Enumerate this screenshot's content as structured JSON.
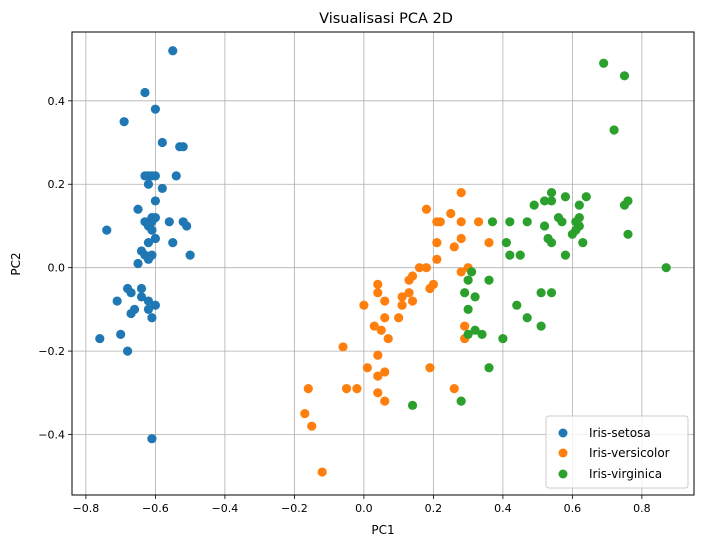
{
  "chart_data": {
    "type": "scatter",
    "title": "Visualisasi PCA 2D",
    "xlabel": "PC1",
    "ylabel": "PC2",
    "xlim": [
      -0.84,
      0.95
    ],
    "ylim": [
      -0.545,
      0.565
    ],
    "xticks": [
      -0.8,
      -0.6,
      -0.4,
      -0.2,
      0.0,
      0.2,
      0.4,
      0.6,
      0.8
    ],
    "yticks": [
      -0.4,
      -0.2,
      0.0,
      0.2,
      0.4
    ],
    "xtick_labels": [
      "−0.8",
      "−0.6",
      "−0.4",
      "−0.2",
      "0.0",
      "0.2",
      "0.4",
      "0.6",
      "0.8"
    ],
    "ytick_labels": [
      "−0.4",
      "−0.2",
      "0.0",
      "0.2",
      "0.4"
    ],
    "grid": true,
    "legend_position": "lower-right",
    "series": [
      {
        "name": "Iris-setosa",
        "color": "#1f77b4",
        "points": [
          [
            -0.55,
            0.52
          ],
          [
            -0.63,
            0.42
          ],
          [
            -0.6,
            0.38
          ],
          [
            -0.69,
            0.35
          ],
          [
            -0.58,
            0.3
          ],
          [
            -0.53,
            0.29
          ],
          [
            -0.52,
            0.29
          ],
          [
            -0.63,
            0.22
          ],
          [
            -0.62,
            0.22
          ],
          [
            -0.61,
            0.22
          ],
          [
            -0.6,
            0.22
          ],
          [
            -0.54,
            0.22
          ],
          [
            -0.62,
            0.2
          ],
          [
            -0.58,
            0.19
          ],
          [
            -0.6,
            0.16
          ],
          [
            -0.65,
            0.14
          ],
          [
            -0.61,
            0.12
          ],
          [
            -0.6,
            0.12
          ],
          [
            -0.63,
            0.11
          ],
          [
            -0.61,
            0.11
          ],
          [
            -0.56,
            0.11
          ],
          [
            -0.52,
            0.11
          ],
          [
            -0.51,
            0.1
          ],
          [
            -0.62,
            0.1
          ],
          [
            -0.74,
            0.09
          ],
          [
            -0.61,
            0.09
          ],
          [
            -0.62,
            0.06
          ],
          [
            -0.6,
            0.07
          ],
          [
            -0.55,
            0.06
          ],
          [
            -0.64,
            0.04
          ],
          [
            -0.61,
            0.03
          ],
          [
            -0.5,
            0.03
          ],
          [
            -0.63,
            0.03
          ],
          [
            -0.65,
            0.01
          ],
          [
            -0.62,
            0.02
          ],
          [
            -0.68,
            -0.05
          ],
          [
            -0.64,
            -0.05
          ],
          [
            -0.67,
            -0.06
          ],
          [
            -0.64,
            -0.07
          ],
          [
            -0.71,
            -0.08
          ],
          [
            -0.62,
            -0.08
          ],
          [
            -0.6,
            -0.09
          ],
          [
            -0.66,
            -0.1
          ],
          [
            -0.62,
            -0.1
          ],
          [
            -0.67,
            -0.11
          ],
          [
            -0.61,
            -0.12
          ],
          [
            -0.7,
            -0.16
          ],
          [
            -0.76,
            -0.17
          ],
          [
            -0.68,
            -0.2
          ],
          [
            -0.61,
            -0.41
          ]
        ]
      },
      {
        "name": "Iris-versicolor",
        "color": "#ff7f0e",
        "points": [
          [
            0.28,
            0.18
          ],
          [
            0.18,
            0.14
          ],
          [
            0.25,
            0.13
          ],
          [
            0.21,
            0.11
          ],
          [
            0.22,
            0.11
          ],
          [
            0.28,
            0.11
          ],
          [
            0.33,
            0.11
          ],
          [
            0.28,
            0.07
          ],
          [
            0.21,
            0.06
          ],
          [
            0.36,
            0.06
          ],
          [
            0.26,
            0.05
          ],
          [
            0.21,
            0.02
          ],
          [
            0.16,
            0.0
          ],
          [
            0.18,
            0.0
          ],
          [
            0.3,
            0.0
          ],
          [
            0.28,
            -0.01
          ],
          [
            0.14,
            -0.02
          ],
          [
            0.13,
            -0.03
          ],
          [
            0.2,
            -0.04
          ],
          [
            0.04,
            -0.04
          ],
          [
            0.04,
            -0.06
          ],
          [
            0.19,
            -0.05
          ],
          [
            0.13,
            -0.06
          ],
          [
            0.11,
            -0.07
          ],
          [
            0.14,
            -0.08
          ],
          [
            0.0,
            -0.09
          ],
          [
            0.06,
            -0.08
          ],
          [
            0.11,
            -0.09
          ],
          [
            0.06,
            -0.12
          ],
          [
            0.1,
            -0.12
          ],
          [
            0.03,
            -0.14
          ],
          [
            0.05,
            -0.15
          ],
          [
            0.29,
            -0.14
          ],
          [
            0.07,
            -0.17
          ],
          [
            -0.06,
            -0.19
          ],
          [
            0.04,
            -0.21
          ],
          [
            0.01,
            -0.24
          ],
          [
            0.19,
            -0.24
          ],
          [
            0.06,
            -0.25
          ],
          [
            0.04,
            -0.26
          ],
          [
            0.29,
            -0.17
          ],
          [
            -0.05,
            -0.29
          ],
          [
            -0.02,
            -0.29
          ],
          [
            -0.16,
            -0.29
          ],
          [
            0.26,
            -0.29
          ],
          [
            0.04,
            -0.3
          ],
          [
            0.06,
            -0.32
          ],
          [
            -0.17,
            -0.35
          ],
          [
            -0.15,
            -0.38
          ],
          [
            -0.12,
            -0.49
          ]
        ]
      },
      {
        "name": "Iris-virginica",
        "color": "#2ca02c",
        "points": [
          [
            0.69,
            0.49
          ],
          [
            0.75,
            0.46
          ],
          [
            0.72,
            0.33
          ],
          [
            0.54,
            0.18
          ],
          [
            0.58,
            0.17
          ],
          [
            0.64,
            0.17
          ],
          [
            0.76,
            0.16
          ],
          [
            0.52,
            0.16
          ],
          [
            0.54,
            0.16
          ],
          [
            0.62,
            0.15
          ],
          [
            0.49,
            0.15
          ],
          [
            0.75,
            0.15
          ],
          [
            0.56,
            0.12
          ],
          [
            0.62,
            0.12
          ],
          [
            0.47,
            0.11
          ],
          [
            0.42,
            0.11
          ],
          [
            0.52,
            0.1
          ],
          [
            0.61,
            0.11
          ],
          [
            0.57,
            0.11
          ],
          [
            0.62,
            0.1
          ],
          [
            0.61,
            0.09
          ],
          [
            0.6,
            0.08
          ],
          [
            0.76,
            0.08
          ],
          [
            0.53,
            0.07
          ],
          [
            0.54,
            0.06
          ],
          [
            0.63,
            0.06
          ],
          [
            0.41,
            0.06
          ],
          [
            0.58,
            0.03
          ],
          [
            0.45,
            0.03
          ],
          [
            0.42,
            0.03
          ],
          [
            0.87,
            0.0
          ],
          [
            0.31,
            -0.01
          ],
          [
            0.3,
            -0.03
          ],
          [
            0.36,
            -0.03
          ],
          [
            0.29,
            -0.06
          ],
          [
            0.32,
            -0.07
          ],
          [
            0.51,
            -0.06
          ],
          [
            0.54,
            -0.06
          ],
          [
            0.44,
            -0.09
          ],
          [
            0.3,
            -0.1
          ],
          [
            0.47,
            -0.12
          ],
          [
            0.51,
            -0.14
          ],
          [
            0.32,
            -0.15
          ],
          [
            0.3,
            -0.16
          ],
          [
            0.34,
            -0.16
          ],
          [
            0.4,
            -0.17
          ],
          [
            0.36,
            -0.24
          ],
          [
            0.28,
            -0.32
          ],
          [
            0.14,
            -0.33
          ],
          [
            0.37,
            0.11
          ]
        ]
      }
    ]
  }
}
